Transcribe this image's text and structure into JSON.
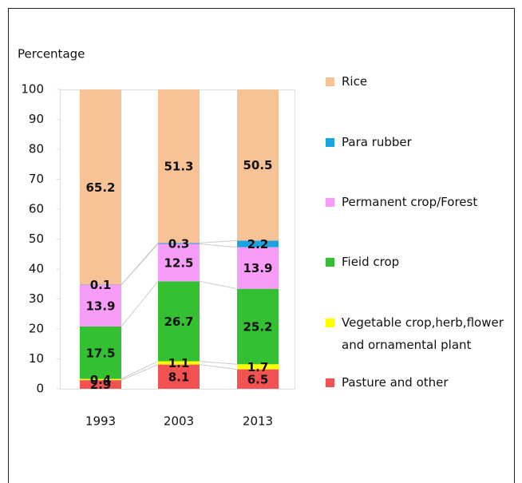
{
  "chart_data": {
    "type": "bar",
    "stacked": true,
    "y_label": "Percentage",
    "categories": [
      "1993",
      "2003",
      "2013"
    ],
    "series": [
      {
        "name": "Pasture and other",
        "color": "#f25252",
        "values": [
          2.9,
          8.1,
          6.5
        ]
      },
      {
        "name": "Vegetable crop,herb,flower and ornamental plant",
        "color": "#ffff00",
        "values": [
          0.4,
          1.1,
          1.7
        ]
      },
      {
        "name": "Fieid crop",
        "color": "#33c033",
        "values": [
          17.5,
          26.7,
          25.2
        ]
      },
      {
        "name": "Permanent crop/Forest",
        "color": "#f79cf7",
        "values": [
          13.9,
          12.5,
          13.9
        ]
      },
      {
        "name": "Para rubber",
        "color": "#1aa3e0",
        "values": [
          0.1,
          0.3,
          2.2
        ]
      },
      {
        "name": "Rice",
        "color": "#f6c296",
        "values": [
          65.2,
          51.3,
          50.5
        ]
      }
    ],
    "ylim": [
      0,
      100
    ],
    "yticks": [
      0,
      10,
      20,
      30,
      40,
      50,
      60,
      70,
      80,
      90,
      100
    ]
  }
}
